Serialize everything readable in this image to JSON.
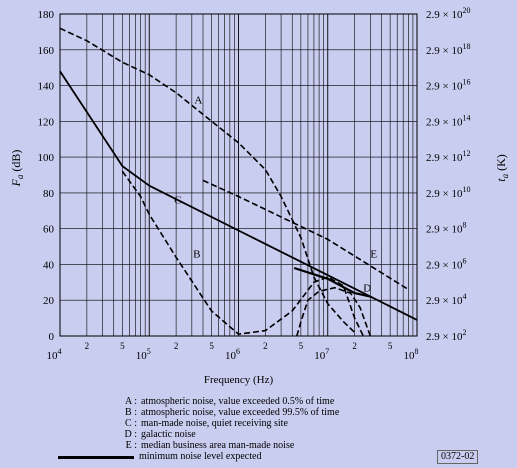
{
  "chart_data": {
    "type": "line",
    "xlabel": "Frequency (Hz)",
    "ylabel_left": {
      "main": "F",
      "sub": "a",
      "unit": "(dB)"
    },
    "ylabel_right": {
      "main": "t",
      "sub": "a",
      "unit": "(K)"
    },
    "x_scale": "log",
    "xlim": [
      10000,
      100000000
    ],
    "ylim": [
      0,
      180
    ],
    "x_major_ticks": [
      {
        "value": 10000,
        "base": "10",
        "exp": "4"
      },
      {
        "value": 100000,
        "base": "10",
        "exp": "5"
      },
      {
        "value": 1000000,
        "base": "10",
        "exp": "6"
      },
      {
        "value": 10000000,
        "base": "10",
        "exp": "7"
      },
      {
        "value": 100000000,
        "base": "10",
        "exp": "8"
      }
    ],
    "x_minor_labels": [
      "2",
      "5"
    ],
    "y_ticks_left": [
      "0",
      "20",
      "40",
      "60",
      "80",
      "100",
      "120",
      "140",
      "160",
      "180"
    ],
    "y_ticks_right": [
      {
        "value": 0,
        "mantissa": "2.9 × 10",
        "exp": "2"
      },
      {
        "value": 20,
        "mantissa": "2.9 × 10",
        "exp": "4"
      },
      {
        "value": 40,
        "mantissa": "2.9 × 10",
        "exp": "6"
      },
      {
        "value": 60,
        "mantissa": "2.9 × 10",
        "exp": "8"
      },
      {
        "value": 80,
        "mantissa": "2.9 × 10",
        "exp": "10"
      },
      {
        "value": 100,
        "mantissa": "2.9 × 10",
        "exp": "12"
      },
      {
        "value": 120,
        "mantissa": "2.9 × 10",
        "exp": "14"
      },
      {
        "value": 140,
        "mantissa": "2.9 × 10",
        "exp": "16"
      },
      {
        "value": 160,
        "mantissa": "2.9 × 10",
        "exp": "18"
      },
      {
        "value": 180,
        "mantissa": "2.9 × 10",
        "exp": "20"
      }
    ],
    "grid": true,
    "series": [
      {
        "key": "A",
        "style": "dashed",
        "label_at": [
          320000,
          130
        ],
        "points": [
          [
            10000,
            172
          ],
          [
            20000,
            165
          ],
          [
            50000,
            153
          ],
          [
            100000,
            146
          ],
          [
            200000,
            136
          ],
          [
            500000,
            120
          ],
          [
            1000000,
            108
          ],
          [
            2000000,
            93
          ],
          [
            3000000,
            78
          ],
          [
            5000000,
            55
          ],
          [
            7000000,
            33
          ],
          [
            10000000,
            18
          ],
          [
            15000000,
            8
          ],
          [
            20000000,
            2
          ]
        ]
      },
      {
        "key": "B",
        "style": "dashed",
        "label_at": [
          310000,
          44
        ],
        "points": [
          [
            50000,
            92
          ],
          [
            80000,
            78
          ],
          [
            100000,
            68
          ],
          [
            200000,
            44
          ],
          [
            500000,
            14
          ],
          [
            1000000,
            1
          ],
          [
            2000000,
            3
          ],
          [
            4000000,
            14
          ],
          [
            7000000,
            30
          ],
          [
            10000000,
            33
          ],
          [
            15000000,
            28
          ],
          [
            20000000,
            10
          ],
          [
            25000000,
            0
          ]
        ]
      },
      {
        "key": "C",
        "style": "solid",
        "label_at": [
          190000,
          74
        ],
        "points": [
          [
            10000,
            148
          ],
          [
            50000,
            95
          ],
          [
            100000,
            84
          ],
          [
            1000000,
            59
          ],
          [
            10000000,
            34
          ],
          [
            100000000,
            9
          ]
        ]
      },
      {
        "key": "D",
        "style": "dashed",
        "label_at": [
          25000000,
          25
        ],
        "points": [
          [
            4500000,
            0
          ],
          [
            5000000,
            8
          ],
          [
            6000000,
            20
          ],
          [
            8000000,
            25
          ],
          [
            12000000,
            27
          ],
          [
            18000000,
            24
          ],
          [
            23000000,
            16
          ],
          [
            30000000,
            0
          ]
        ]
      },
      {
        "key": "E",
        "style": "dashed",
        "label_at": [
          30000000,
          44
        ],
        "points": [
          [
            400000,
            87
          ],
          [
            1000000,
            78
          ],
          [
            10000000,
            54
          ],
          [
            80000000,
            26
          ]
        ]
      },
      {
        "key": "min",
        "style": "bold",
        "points": [
          [
            4200000,
            38
          ],
          [
            10000000,
            32
          ],
          [
            20000000,
            24
          ],
          [
            30000000,
            22
          ]
        ]
      }
    ]
  },
  "legend": {
    "items": [
      {
        "key": "A :",
        "text": "atmospheric noise, value exceeded 0.5% of time"
      },
      {
        "key": "B :",
        "text": "atmospheric noise, value exceeded 99.5% of time"
      },
      {
        "key": "C :",
        "text": "man-made noise, quiet receiving site"
      },
      {
        "key": "D :",
        "text": "galactic noise"
      },
      {
        "key": "E :",
        "text": "median business area man-made noise"
      }
    ],
    "line_text": "minimum noise level expected"
  },
  "figure_code": "0372-02"
}
